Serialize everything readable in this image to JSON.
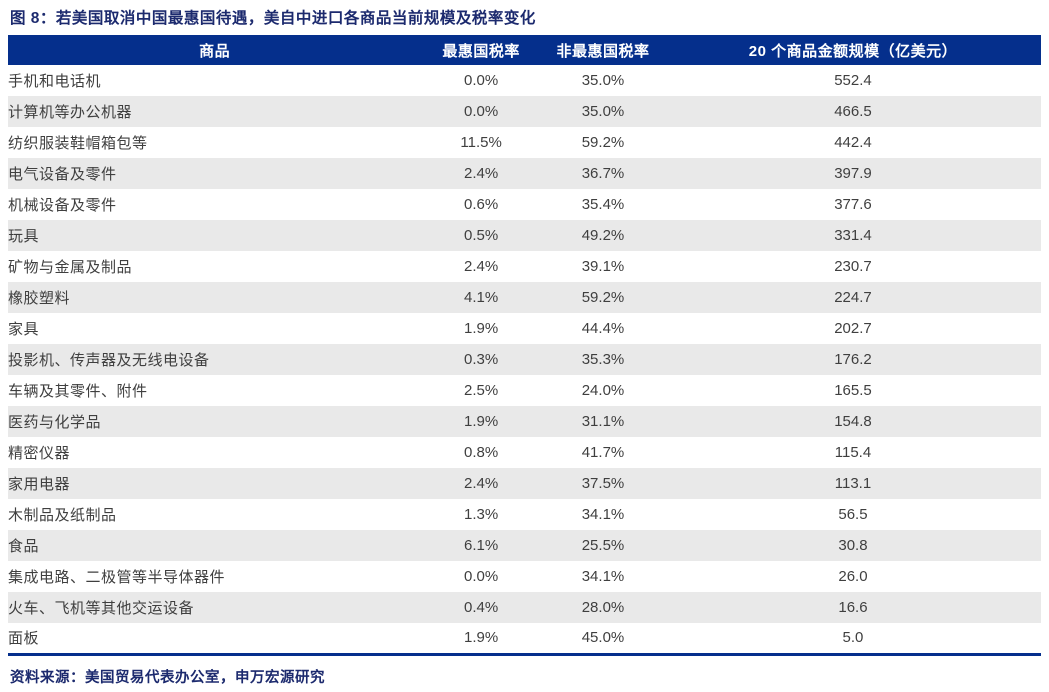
{
  "chart_data": {
    "type": "table",
    "title": "图 8：若美国取消中国最惠国待遇，美自中进口各商品当前规模及税率变化",
    "columns": [
      "商品",
      "最惠国税率",
      "非最惠国税率",
      "20 个商品金额规模（亿美元）"
    ],
    "rows": [
      [
        "手机和电话机",
        "0.0%",
        "35.0%",
        "552.4"
      ],
      [
        "计算机等办公机器",
        "0.0%",
        "35.0%",
        "466.5"
      ],
      [
        "纺织服装鞋帽箱包等",
        "11.5%",
        "59.2%",
        "442.4"
      ],
      [
        "电气设备及零件",
        "2.4%",
        "36.7%",
        "397.9"
      ],
      [
        "机械设备及零件",
        "0.6%",
        "35.4%",
        "377.6"
      ],
      [
        "玩具",
        "0.5%",
        "49.2%",
        "331.4"
      ],
      [
        "矿物与金属及制品",
        "2.4%",
        "39.1%",
        "230.7"
      ],
      [
        "橡胶塑料",
        "4.1%",
        "59.2%",
        "224.7"
      ],
      [
        "家具",
        "1.9%",
        "44.4%",
        "202.7"
      ],
      [
        "投影机、传声器及无线电设备",
        "0.3%",
        "35.3%",
        "176.2"
      ],
      [
        "车辆及其零件、附件",
        "2.5%",
        "24.0%",
        "165.5"
      ],
      [
        "医药与化学品",
        "1.9%",
        "31.1%",
        "154.8"
      ],
      [
        "精密仪器",
        "0.8%",
        "41.7%",
        "115.4"
      ],
      [
        "家用电器",
        "2.4%",
        "37.5%",
        "113.1"
      ],
      [
        "木制品及纸制品",
        "1.3%",
        "34.1%",
        "56.5"
      ],
      [
        "食品",
        "6.1%",
        "25.5%",
        "30.8"
      ],
      [
        "集成电路、二极管等半导体器件",
        "0.0%",
        "34.1%",
        "26.0"
      ],
      [
        "火车、飞机等其他交运设备",
        "0.4%",
        "28.0%",
        "16.6"
      ],
      [
        "面板",
        "1.9%",
        "45.0%",
        "5.0"
      ]
    ],
    "source_note": "资料来源：美国贸易代表办公室，申万宏源研究"
  },
  "colors": {
    "header_bg": "#052F8C",
    "header_text": "#FFFFFF",
    "title_text": "#1C2A6E",
    "source_text": "#1C2A6E",
    "stripe_bg": "#E9E9E9",
    "row_bg": "#FFFFFF",
    "body_text": "#3F3F3F",
    "bottom_border": "#052F8C"
  }
}
